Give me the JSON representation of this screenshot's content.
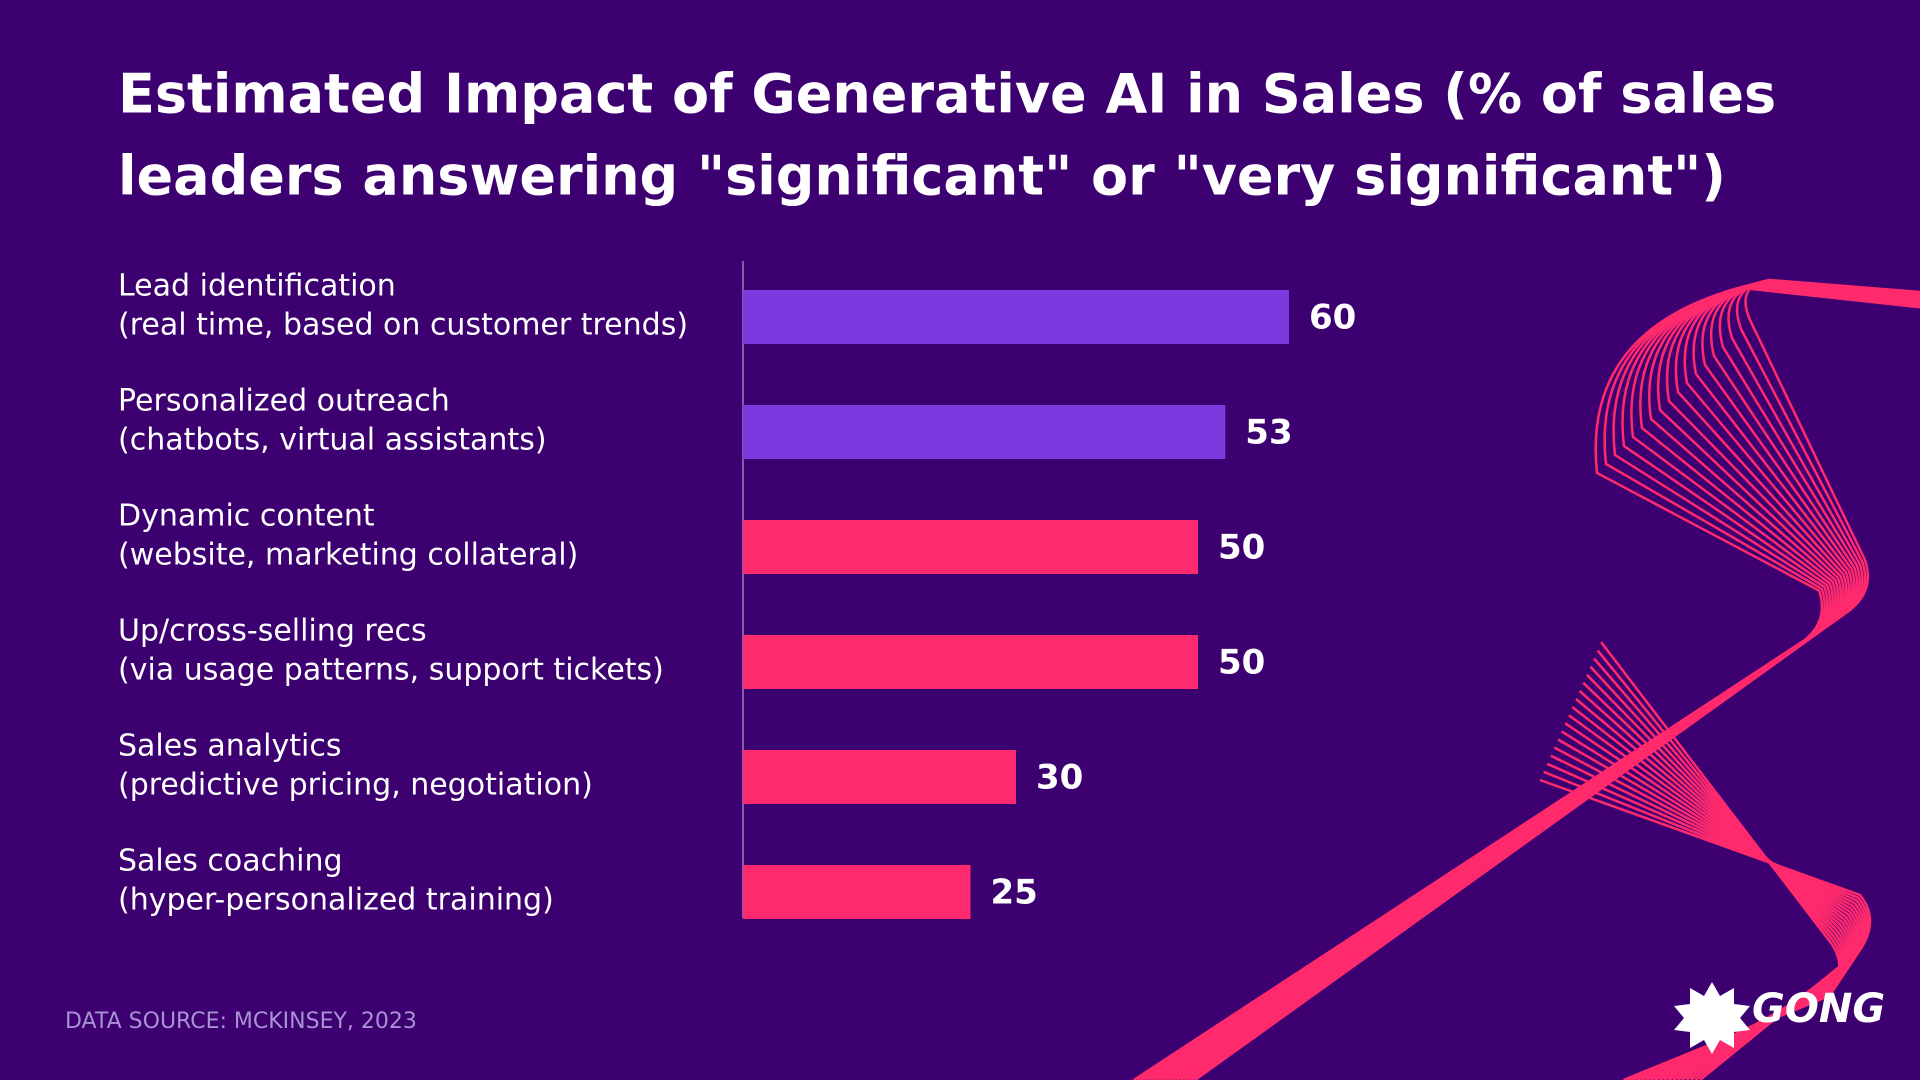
{
  "chart_data": {
    "type": "bar",
    "orientation": "horizontal",
    "title_lines": [
      "Estimated Impact of Generative AI in Sales (% of sales",
      "leaders answering \"significant\" or \"very significant\")"
    ],
    "categories": [
      "Lead identification",
      "Personalized outreach",
      "Dynamic content",
      "Up/cross-selling recs",
      "Sales analytics",
      "Sales coaching"
    ],
    "category_notes": [
      "(real time, based on customer trends)",
      "(chatbots, virtual assistants)",
      "(website, marketing collateral)",
      "(via usage patterns, support tickets)",
      "(predictive pricing, negotiation)",
      "(hyper-personalized training)"
    ],
    "values": [
      60,
      53,
      50,
      50,
      30,
      25
    ],
    "colors": [
      "#7b3ae0",
      "#7b3ae0",
      "#ff2a6d",
      "#ff2a6d",
      "#ff2a6d",
      "#ff2a6d"
    ],
    "xlim": [
      0,
      60
    ],
    "source": "DATA SOURCE: MCKINSEY, 2023",
    "logo": "GONG"
  }
}
